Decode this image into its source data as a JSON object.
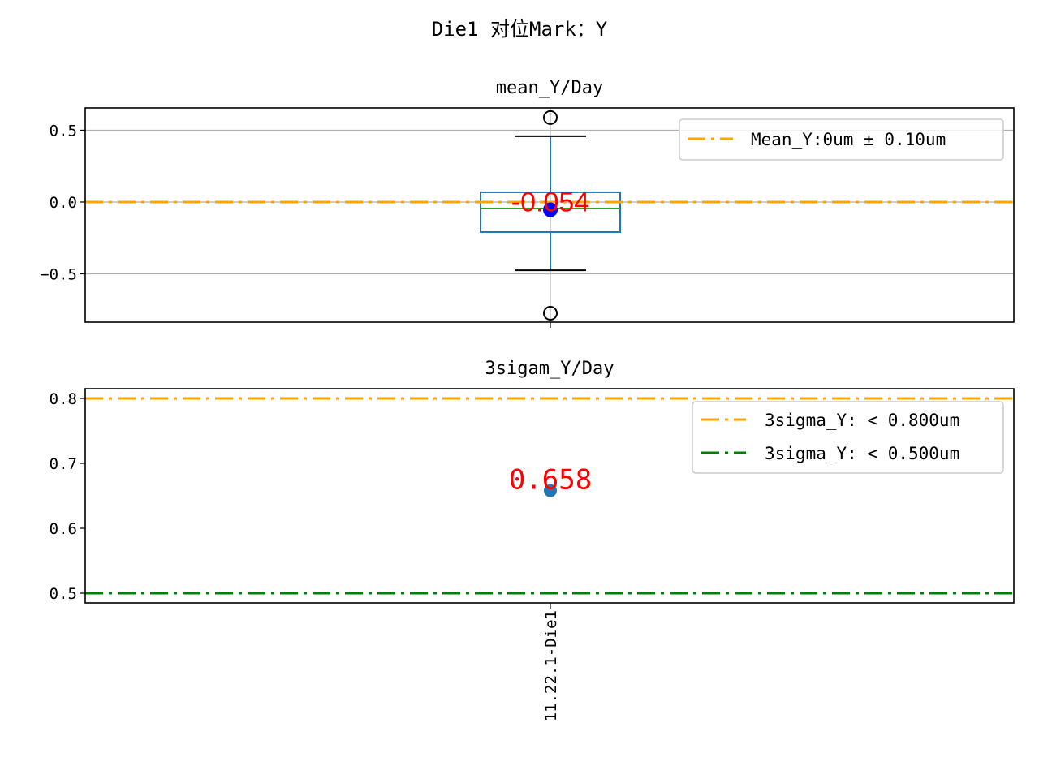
{
  "suptitle": "Die1 对位Mark：Y",
  "chart_data": [
    {
      "type": "box",
      "title": "mean_Y/Day",
      "categories": [
        "11.22.1-Die1"
      ],
      "ylim": [
        -0.836,
        0.655
      ],
      "yticks": [
        0.5,
        0.0,
        -0.5
      ],
      "ytick_labels": [
        "0.5",
        "0.0",
        "−0.5"
      ],
      "grid": true,
      "box": {
        "q1": -0.209,
        "median": -0.045,
        "q3": 0.068,
        "whisker_low": -0.475,
        "whisker_high": 0.458,
        "fliers": [
          0.588,
          -0.774
        ],
        "mean": -0.054
      },
      "mean_label": "-0.054",
      "reference_lines": [
        {
          "y": 0,
          "color": "#ffa500",
          "style": "dash-dot",
          "label": "Mean_Y:0um ± 0.10um"
        }
      ],
      "legend_position": "upper right",
      "colors": {
        "box": "#1f77b4",
        "median": "#2ca02c",
        "mean_point": "#0000ff",
        "label": "#ff0000"
      }
    },
    {
      "type": "scatter",
      "title": "3sigam_Y/Day",
      "categories": [
        "11.22.1-Die1"
      ],
      "ylim": [
        0.485,
        0.815
      ],
      "yticks": [
        0.8,
        0.7,
        0.6,
        0.5
      ],
      "ytick_labels": [
        "0.8",
        "0.7",
        "0.6",
        "0.5"
      ],
      "grid": false,
      "values": [
        0.658
      ],
      "value_label": "0.658",
      "reference_lines": [
        {
          "y": 0.8,
          "color": "#ffa500",
          "style": "dash-dot",
          "label": "3sigma_Y: < 0.800um"
        },
        {
          "y": 0.5,
          "color": "#008000",
          "style": "dash-dot",
          "label": "3sigma_Y: < 0.500um"
        }
      ],
      "legend_position": "upper right",
      "colors": {
        "point": "#1f77b4",
        "label": "#ff0000"
      }
    }
  ]
}
